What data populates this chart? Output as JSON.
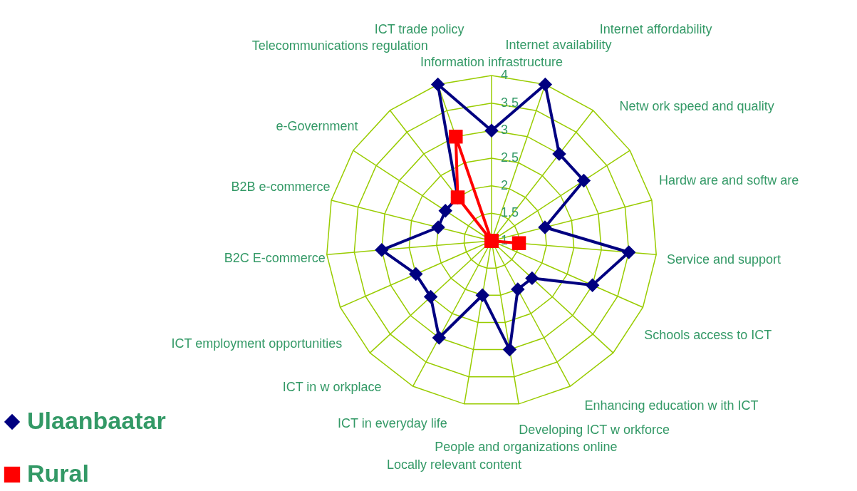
{
  "chart_data": {
    "type": "radar",
    "categories": [
      "Information infrastructure",
      "Internet availability",
      "Internet affordability",
      "Netw ork speed and quality",
      "Hardw are and softw are",
      "Service and support",
      "Schools access to ICT",
      "Enhancing education w ith ICT",
      "Developing ICT w orkforce",
      "People and organizations online",
      "Locally relevant content",
      "ICT in everyday life",
      "ICT in w orkplace",
      "ICT employment opportunities",
      "B2C E-commerce",
      "B2B e-commerce",
      "e-Government",
      "Telecommunications regulation",
      "ICT trade policy"
    ],
    "series": [
      {
        "name": "Ulaanbaatar",
        "color": "#000080",
        "marker": "diamond",
        "values": [
          3,
          4,
          3,
          3,
          2,
          3.5,
          3,
          2,
          2,
          3,
          2,
          3,
          2.5,
          2.5,
          3,
          2,
          2,
          2,
          4
        ]
      },
      {
        "name": "Rural",
        "color": "#ff0000",
        "marker": "square",
        "values": [
          1,
          1,
          1,
          1,
          1,
          1.5,
          1,
          1,
          1,
          1,
          1,
          1,
          1,
          1,
          1,
          1,
          1,
          2,
          3
        ]
      }
    ],
    "ylim": [
      1,
      4
    ],
    "yticks": [
      1,
      1.5,
      2,
      2.5,
      3,
      3.5,
      4
    ],
    "grid": true,
    "legend": "bottom left"
  }
}
